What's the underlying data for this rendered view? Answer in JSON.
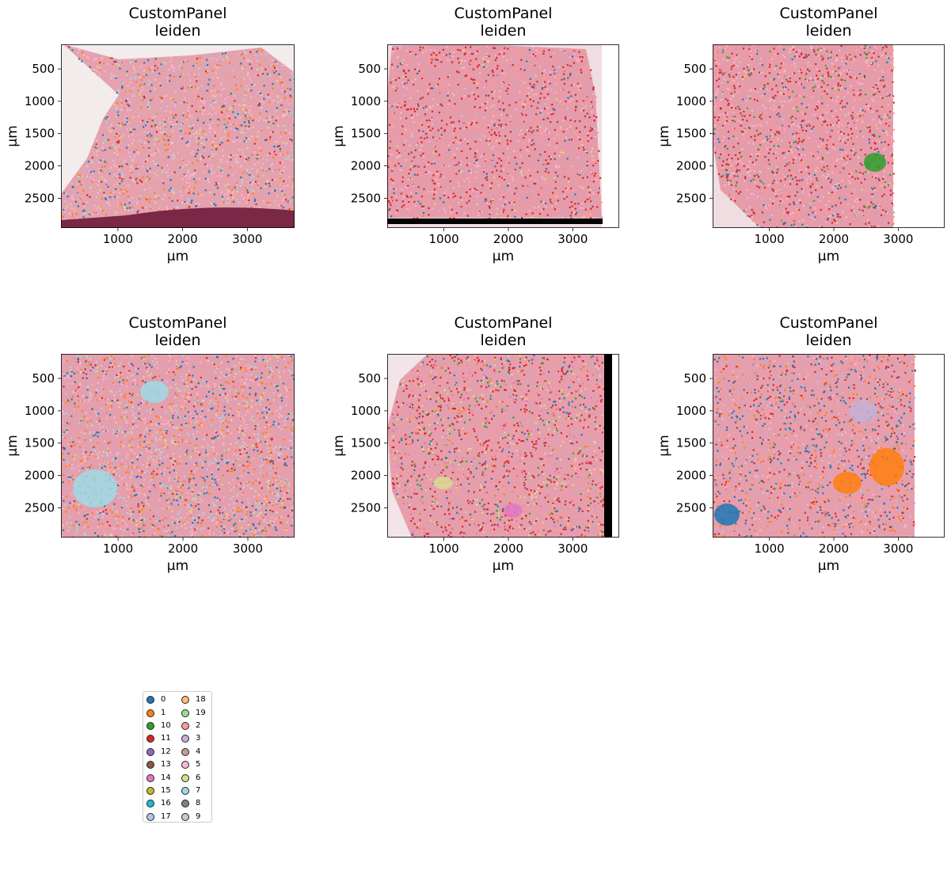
{
  "chart_data": [
    {
      "type": "heatmap",
      "title": "CustomPanel\nleiden",
      "xlabel": "µm",
      "ylabel": "µm",
      "xlim": [
        120,
        3730
      ],
      "ylim": [
        2960,
        120
      ],
      "xticks": [
        1000,
        2000,
        3000
      ],
      "yticks": [
        500,
        1000,
        1500,
        2000,
        2500
      ],
      "tissue_extent_x": [
        120,
        3730
      ],
      "dark_region": "bottom edge",
      "dominant_clusters": [
        "5",
        "2",
        "6",
        "0",
        "1"
      ]
    },
    {
      "type": "heatmap",
      "title": "CustomPanel\nleiden",
      "xlabel": "µm",
      "ylabel": "µm",
      "xlim": [
        120,
        3720
      ],
      "ylim": [
        2960,
        120
      ],
      "xticks": [
        1000,
        2000,
        3000
      ],
      "yticks": [
        500,
        1000,
        1500,
        2000,
        2500
      ],
      "tissue_extent_x": [
        120,
        3450
      ],
      "dark_region": "bottom bar",
      "dominant_clusters": [
        "2",
        "11",
        "5"
      ]
    },
    {
      "type": "heatmap",
      "title": "CustomPanel\nleiden",
      "xlabel": "µm",
      "ylabel": "µm",
      "xlim": [
        120,
        3720
      ],
      "ylim": [
        2960,
        120
      ],
      "xticks": [
        1000,
        2000,
        3000
      ],
      "yticks": [
        500,
        1000,
        1500,
        2000,
        2500
      ],
      "tissue_extent_x": [
        120,
        2920
      ],
      "dark_region": "none",
      "dominant_clusters": [
        "2",
        "11",
        "5",
        "10"
      ]
    },
    {
      "type": "heatmap",
      "title": "CustomPanel\nleiden",
      "xlabel": "µm",
      "ylabel": "µm",
      "xlim": [
        120,
        3720
      ],
      "ylim": [
        2960,
        120
      ],
      "xticks": [
        1000,
        2000,
        3000
      ],
      "yticks": [
        500,
        1000,
        1500,
        2000,
        2500
      ],
      "tissue_extent_x": [
        120,
        3720
      ],
      "dark_region": "none",
      "dominant_clusters": [
        "5",
        "1",
        "7",
        "0",
        "6"
      ]
    },
    {
      "type": "heatmap",
      "title": "CustomPanel\nleiden",
      "xlabel": "µm",
      "ylabel": "µm",
      "xlim": [
        120,
        3720
      ],
      "ylim": [
        2960,
        120
      ],
      "xticks": [
        1000,
        2000,
        3000
      ],
      "yticks": [
        500,
        1000,
        1500,
        2000,
        2500
      ],
      "tissue_extent_x": [
        120,
        3600
      ],
      "dark_region": "right bar",
      "dominant_clusters": [
        "2",
        "11",
        "6",
        "14",
        "10"
      ]
    },
    {
      "type": "heatmap",
      "title": "CustomPanel\nleiden",
      "xlabel": "µm",
      "ylabel": "µm",
      "xlim": [
        120,
        3720
      ],
      "ylim": [
        2960,
        120
      ],
      "xticks": [
        1000,
        2000,
        3000
      ],
      "yticks": [
        500,
        1000,
        1500,
        2000,
        2500
      ],
      "tissue_extent_x": [
        120,
        3250
      ],
      "dark_region": "none",
      "dominant_clusters": [
        "2",
        "0",
        "1",
        "3"
      ]
    }
  ],
  "legend": {
    "entries": [
      {
        "label": "0",
        "color": "#1f77b4"
      },
      {
        "label": "1",
        "color": "#ff7f0e"
      },
      {
        "label": "10",
        "color": "#2ca02c"
      },
      {
        "label": "11",
        "color": "#d62728"
      },
      {
        "label": "12",
        "color": "#9467bd"
      },
      {
        "label": "13",
        "color": "#8c564b"
      },
      {
        "label": "14",
        "color": "#e377c2"
      },
      {
        "label": "15",
        "color": "#bcbd22"
      },
      {
        "label": "16",
        "color": "#17becf"
      },
      {
        "label": "17",
        "color": "#aec7e8"
      },
      {
        "label": "18",
        "color": "#ffbb78"
      },
      {
        "label": "19",
        "color": "#98df8a"
      },
      {
        "label": "2",
        "color": "#ff9896"
      },
      {
        "label": "3",
        "color": "#c5b0d5"
      },
      {
        "label": "4",
        "color": "#c49c94"
      },
      {
        "label": "5",
        "color": "#f7b6d2"
      },
      {
        "label": "6",
        "color": "#dbdb8d"
      },
      {
        "label": "7",
        "color": "#9edae5"
      },
      {
        "label": "8",
        "color": "#7f7f7f"
      },
      {
        "label": "9",
        "color": "#c7c7c7"
      }
    ]
  }
}
